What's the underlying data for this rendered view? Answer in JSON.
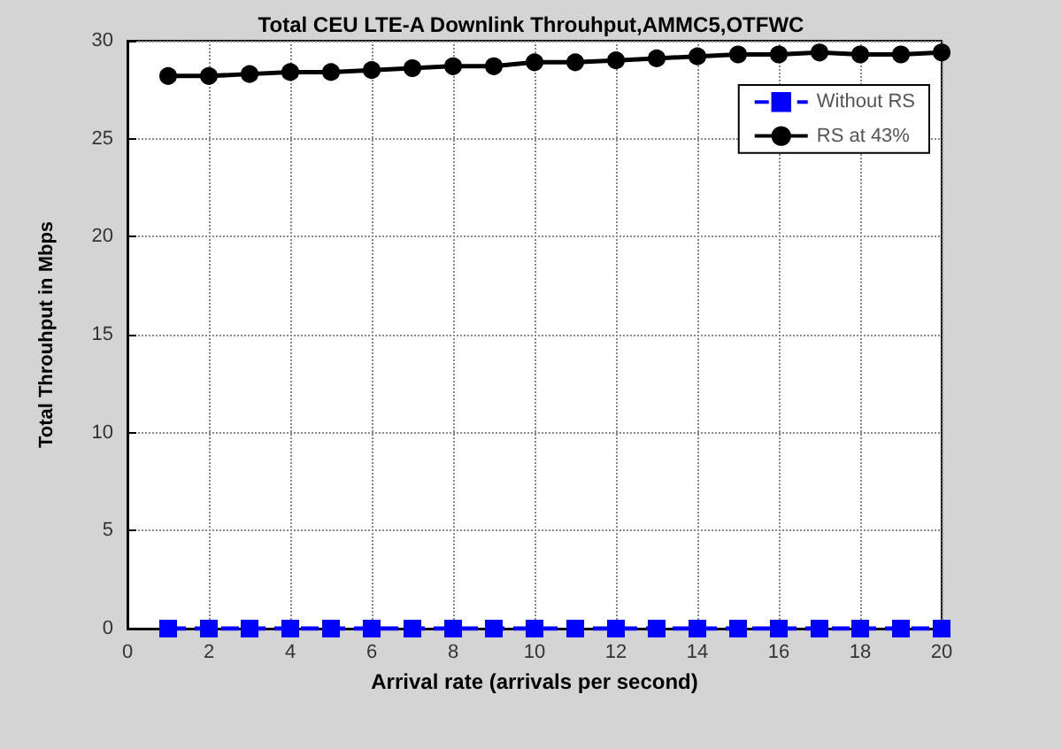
{
  "chart_data": {
    "type": "line",
    "title": "Total CEU LTE-A Downlink Throuhput,AMMC5,OTFWC",
    "xlabel": "Arrival rate (arrivals per second)",
    "ylabel": "Total Throuhput in Mbps",
    "x": [
      1,
      2,
      3,
      4,
      5,
      6,
      7,
      8,
      9,
      10,
      11,
      12,
      13,
      14,
      15,
      16,
      17,
      18,
      19,
      20
    ],
    "series": [
      {
        "name": "Without RS",
        "color": "#0000ff",
        "marker": "square",
        "line_style": "dashed",
        "values": [
          0,
          0,
          0,
          0,
          0,
          0,
          0,
          0,
          0,
          0,
          0,
          0,
          0,
          0,
          0,
          0,
          0,
          0,
          0,
          0
        ]
      },
      {
        "name": "RS at 43%",
        "color": "#000000",
        "marker": "circle",
        "line_style": "solid",
        "values": [
          28.2,
          28.2,
          28.3,
          28.4,
          28.4,
          28.5,
          28.6,
          28.7,
          28.7,
          28.9,
          28.9,
          29.0,
          29.1,
          29.2,
          29.3,
          29.3,
          29.4,
          29.3,
          29.3,
          29.4
        ]
      }
    ],
    "xlim": [
      0,
      20
    ],
    "xticks": [
      0,
      2,
      4,
      6,
      8,
      10,
      12,
      14,
      16,
      18,
      20
    ],
    "ylim": [
      0,
      30
    ],
    "yticks": [
      0,
      5,
      10,
      15,
      20,
      25,
      30
    ],
    "grid": true,
    "legend": "top right"
  }
}
